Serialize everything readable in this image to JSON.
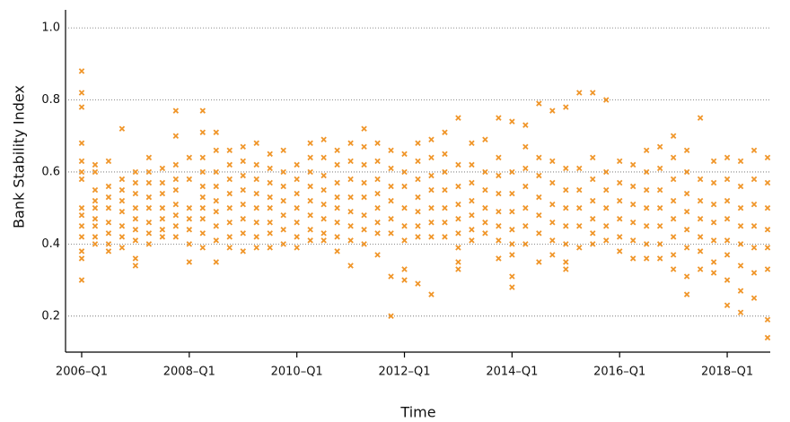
{
  "chart_data": {
    "type": "scatter",
    "x_label": "Time",
    "y_label": "Bank Stability Index",
    "color": "#f0962a",
    "grid": true,
    "xlim": [
      2005.7,
      2018.8
    ],
    "ylim": [
      0.1,
      1.05
    ],
    "xticks": [
      {
        "value": 2006,
        "label": "2006–Q1"
      },
      {
        "value": 2008,
        "label": "2008–Q1"
      },
      {
        "value": 2010,
        "label": "2010–Q1"
      },
      {
        "value": 2012,
        "label": "2012–Q1"
      },
      {
        "value": 2014,
        "label": "2014–Q1"
      },
      {
        "value": 2016,
        "label": "2016–Q1"
      },
      {
        "value": 2018,
        "label": "2018–Q1"
      }
    ],
    "yticks": [
      0.2,
      0.4,
      0.6,
      0.8,
      {
        "value": 1,
        "label": "1.0"
      }
    ],
    "x": [
      2006,
      2006.25,
      2006.5,
      2006.75,
      2007,
      2007.25,
      2007.5,
      2007.75,
      2008,
      2008.25,
      2008.5,
      2008.75,
      2009,
      2009.25,
      2009.5,
      2009.75,
      2010,
      2010.25,
      2010.5,
      2010.75,
      2011,
      2011.25,
      2011.5,
      2011.75,
      2012,
      2012.25,
      2012.5,
      2012.75,
      2013,
      2013.25,
      2013.5,
      2013.75,
      2014,
      2014.25,
      2014.5,
      2014.75,
      2015,
      2015.25,
      2015.5,
      2015.75,
      2016,
      2016.25,
      2016.5,
      2016.75,
      2017,
      2017.25,
      2017.5,
      2017.75,
      2018,
      2018.25,
      2018.5,
      2018.75
    ],
    "values": [
      [
        0.88,
        0.82,
        0.78,
        0.68,
        0.63,
        0.6,
        0.58,
        0.5,
        0.48,
        0.45,
        0.42,
        0.38,
        0.36,
        0.3
      ],
      [
        0.62,
        0.6,
        0.55,
        0.52,
        0.5,
        0.47,
        0.45,
        0.42,
        0.4
      ],
      [
        0.63,
        0.56,
        0.53,
        0.5,
        0.46,
        0.43,
        0.4,
        0.38
      ],
      [
        0.72,
        0.58,
        0.55,
        0.52,
        0.49,
        0.45,
        0.42,
        0.39
      ],
      [
        0.6,
        0.57,
        0.54,
        0.5,
        0.47,
        0.44,
        0.41,
        0.36,
        0.34
      ],
      [
        0.64,
        0.6,
        0.57,
        0.53,
        0.5,
        0.46,
        0.43,
        0.4
      ],
      [
        0.61,
        0.57,
        0.54,
        0.5,
        0.47,
        0.44,
        0.42
      ],
      [
        0.77,
        0.7,
        0.62,
        0.58,
        0.55,
        0.51,
        0.48,
        0.45,
        0.42
      ],
      [
        0.64,
        0.58,
        0.5,
        0.47,
        0.44,
        0.4,
        0.35
      ],
      [
        0.77,
        0.71,
        0.64,
        0.6,
        0.56,
        0.53,
        0.5,
        0.47,
        0.43,
        0.39
      ],
      [
        0.71,
        0.66,
        0.6,
        0.56,
        0.52,
        0.49,
        0.45,
        0.41,
        0.35
      ],
      [
        0.66,
        0.62,
        0.58,
        0.54,
        0.5,
        0.46,
        0.42,
        0.39
      ],
      [
        0.67,
        0.63,
        0.59,
        0.55,
        0.51,
        0.47,
        0.43,
        0.38
      ],
      [
        0.68,
        0.62,
        0.58,
        0.54,
        0.5,
        0.46,
        0.42,
        0.39
      ],
      [
        0.65,
        0.61,
        0.57,
        0.53,
        0.5,
        0.46,
        0.43,
        0.39
      ],
      [
        0.66,
        0.6,
        0.56,
        0.52,
        0.48,
        0.44,
        0.4
      ],
      [
        0.62,
        0.58,
        0.54,
        0.5,
        0.46,
        0.42,
        0.39
      ],
      [
        0.68,
        0.64,
        0.6,
        0.56,
        0.52,
        0.48,
        0.44,
        0.41
      ],
      [
        0.69,
        0.64,
        0.59,
        0.55,
        0.51,
        0.47,
        0.43,
        0.41
      ],
      [
        0.66,
        0.62,
        0.57,
        0.53,
        0.5,
        0.46,
        0.42,
        0.38
      ],
      [
        0.68,
        0.63,
        0.58,
        0.53,
        0.49,
        0.45,
        0.41,
        0.34
      ],
      [
        0.72,
        0.67,
        0.62,
        0.57,
        0.53,
        0.48,
        0.44,
        0.4
      ],
      [
        0.68,
        0.63,
        0.58,
        0.54,
        0.5,
        0.46,
        0.43,
        0.37
      ],
      [
        0.66,
        0.61,
        0.56,
        0.52,
        0.47,
        0.43,
        0.31,
        0.2
      ],
      [
        0.65,
        0.6,
        0.56,
        0.5,
        0.45,
        0.41,
        0.33,
        0.3
      ],
      [
        0.68,
        0.63,
        0.58,
        0.53,
        0.49,
        0.45,
        0.42,
        0.29
      ],
      [
        0.69,
        0.64,
        0.59,
        0.55,
        0.5,
        0.46,
        0.42,
        0.26
      ],
      [
        0.71,
        0.65,
        0.6,
        0.55,
        0.5,
        0.46,
        0.42
      ],
      [
        0.75,
        0.62,
        0.56,
        0.51,
        0.47,
        0.43,
        0.39,
        0.35,
        0.33
      ],
      [
        0.68,
        0.62,
        0.57,
        0.52,
        0.48,
        0.44,
        0.41
      ],
      [
        0.69,
        0.6,
        0.55,
        0.5,
        0.46,
        0.43
      ],
      [
        0.75,
        0.64,
        0.59,
        0.54,
        0.49,
        0.45,
        0.41,
        0.36
      ],
      [
        0.74,
        0.6,
        0.54,
        0.49,
        0.44,
        0.4,
        0.37,
        0.31,
        0.28
      ],
      [
        0.73,
        0.67,
        0.61,
        0.56,
        0.5,
        0.45,
        0.4
      ],
      [
        0.79,
        0.64,
        0.59,
        0.53,
        0.48,
        0.43,
        0.35
      ],
      [
        0.77,
        0.63,
        0.57,
        0.51,
        0.46,
        0.41,
        0.37
      ],
      [
        0.78,
        0.61,
        0.55,
        0.5,
        0.45,
        0.4,
        0.35,
        0.33
      ],
      [
        0.82,
        0.61,
        0.55,
        0.5,
        0.45,
        0.39
      ],
      [
        0.82,
        0.64,
        0.58,
        0.52,
        0.47,
        0.43,
        0.4
      ],
      [
        0.8,
        0.6,
        0.55,
        0.5,
        0.45,
        0.41
      ],
      [
        0.63,
        0.57,
        0.52,
        0.47,
        0.42,
        0.38
      ],
      [
        0.62,
        0.56,
        0.51,
        0.46,
        0.41,
        0.36
      ],
      [
        0.66,
        0.6,
        0.55,
        0.5,
        0.45,
        0.4,
        0.36
      ],
      [
        0.67,
        0.61,
        0.55,
        0.5,
        0.45,
        0.4,
        0.36
      ],
      [
        0.7,
        0.64,
        0.58,
        0.52,
        0.47,
        0.42,
        0.37,
        0.33
      ],
      [
        0.66,
        0.6,
        0.54,
        0.49,
        0.44,
        0.39,
        0.31,
        0.26
      ],
      [
        0.75,
        0.58,
        0.52,
        0.47,
        0.42,
        0.38,
        0.33
      ],
      [
        0.63,
        0.57,
        0.51,
        0.46,
        0.41,
        0.35,
        0.32
      ],
      [
        0.64,
        0.58,
        0.52,
        0.47,
        0.41,
        0.37,
        0.3,
        0.23
      ],
      [
        0.63,
        0.56,
        0.5,
        0.45,
        0.4,
        0.34,
        0.27,
        0.21
      ],
      [
        0.66,
        0.58,
        0.51,
        0.45,
        0.39,
        0.32,
        0.25
      ],
      [
        0.64,
        0.57,
        0.5,
        0.44,
        0.39,
        0.33,
        0.19,
        0.14
      ]
    ]
  }
}
